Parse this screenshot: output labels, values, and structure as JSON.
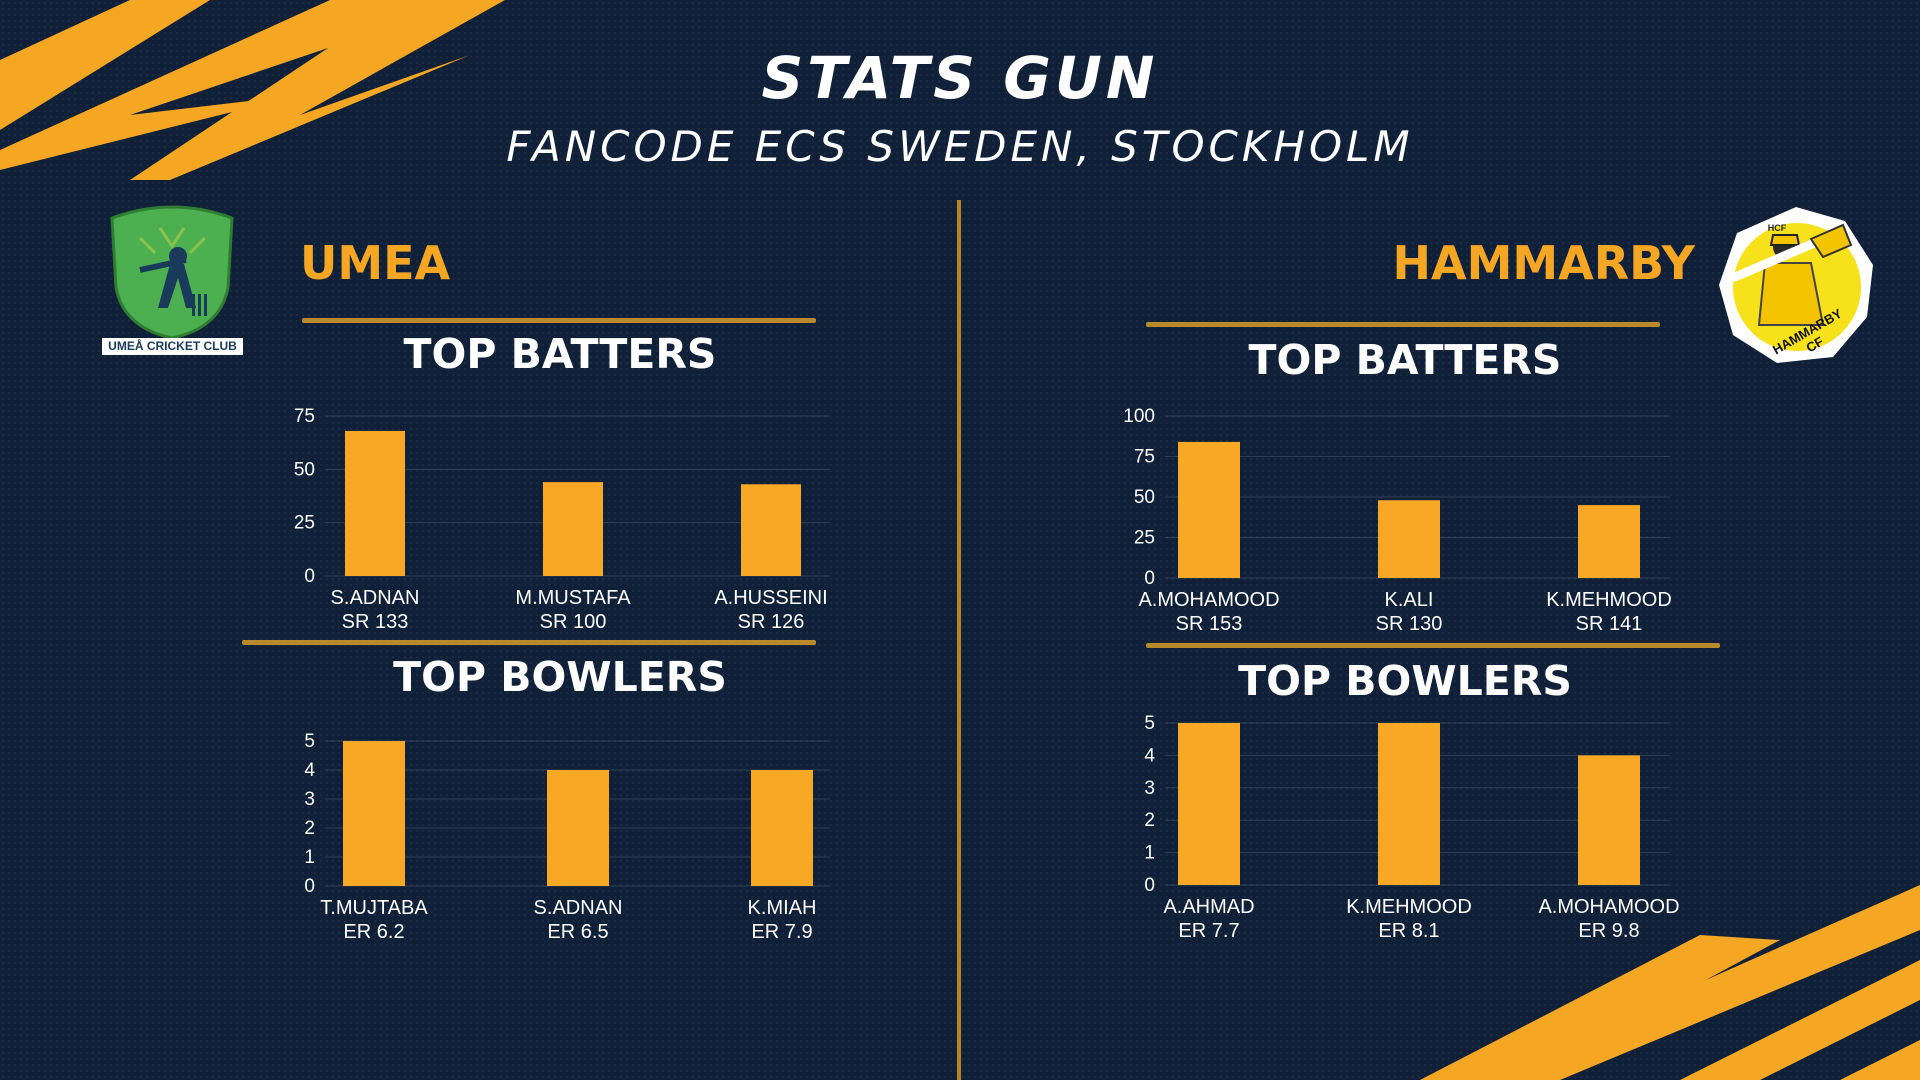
{
  "header": {
    "title": "STATS GUN",
    "subtitle": "FANCODE ECS SWEDEN, STOCKHOLM"
  },
  "colors": {
    "background": "#0f2038",
    "accent": "#f5a623",
    "bar": "#f9a825",
    "divider": "#b98424"
  },
  "teams": {
    "left": {
      "name": "UMEA",
      "logo_text": "UMEÅ CRICKET CLUB",
      "batters_title": "TOP BATTERS",
      "bowlers_title": "TOP BOWLERS"
    },
    "right": {
      "name": "HAMMARBY",
      "logo_text_top": "HCF",
      "logo_text": "HAMMARBY CF",
      "batters_title": "TOP BATTERS",
      "bowlers_title": "TOP BOWLERS"
    }
  },
  "chart_data": [
    {
      "id": "umea-batters",
      "type": "bar",
      "title": "TOP BATTERS",
      "categories": [
        "S.ADNAN",
        "M.MUSTAFA",
        "A.HUSSEINI"
      ],
      "sublabels": [
        "SR 133",
        "SR 100",
        "SR 126"
      ],
      "values": [
        68,
        44,
        43
      ],
      "ylim": [
        0,
        75
      ],
      "yticks": [
        0,
        25,
        50,
        75
      ],
      "grid": true
    },
    {
      "id": "umea-bowlers",
      "type": "bar",
      "title": "TOP BOWLERS",
      "categories": [
        "T.MUJTABA",
        "S.ADNAN",
        "K.MIAH"
      ],
      "sublabels": [
        "ER 6.2",
        "ER 6.5",
        "ER 7.9"
      ],
      "values": [
        5,
        4,
        4
      ],
      "ylim": [
        0,
        5
      ],
      "yticks": [
        0,
        1,
        2,
        3,
        4,
        5
      ],
      "grid": true
    },
    {
      "id": "hammarby-batters",
      "type": "bar",
      "title": "TOP BATTERS",
      "categories": [
        "A.MOHAMOOD",
        "K.ALI",
        "K.MEHMOOD"
      ],
      "sublabels": [
        "SR 153",
        "SR 130",
        "SR 141"
      ],
      "values": [
        84,
        48,
        45
      ],
      "ylim": [
        0,
        100
      ],
      "yticks": [
        0,
        25,
        50,
        75,
        100
      ],
      "grid": true
    },
    {
      "id": "hammarby-bowlers",
      "type": "bar",
      "title": "TOP BOWLERS",
      "categories": [
        "A.AHMAD",
        "K.MEHMOOD",
        "A.MOHAMOOD"
      ],
      "sublabels": [
        "ER 7.7",
        "ER 8.1",
        "ER 9.8"
      ],
      "values": [
        5,
        5,
        4
      ],
      "ylim": [
        0,
        5
      ],
      "yticks": [
        0,
        1,
        2,
        3,
        4,
        5
      ],
      "grid": true
    }
  ]
}
